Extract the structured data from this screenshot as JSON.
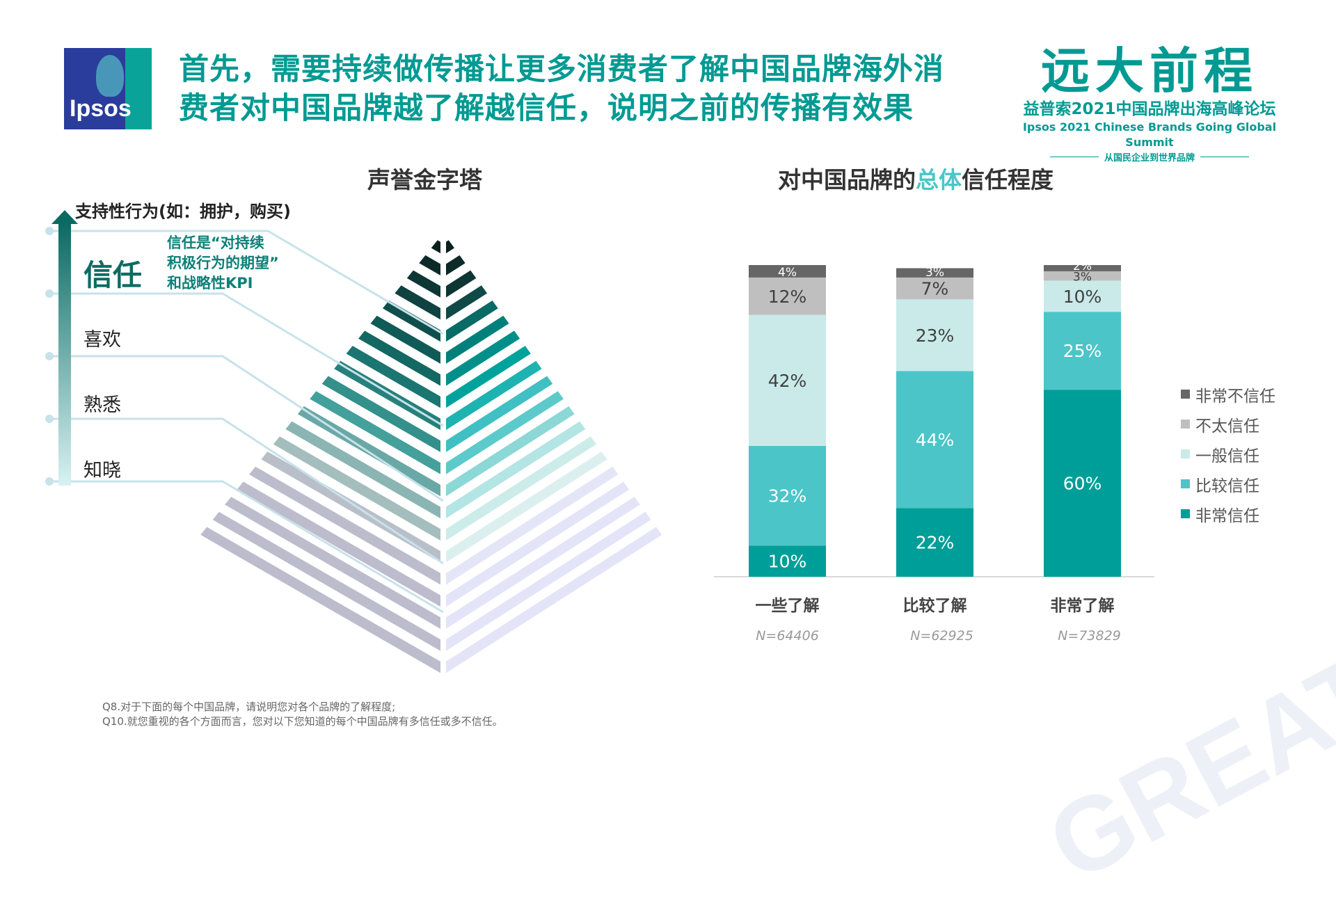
{
  "header": {
    "logo_text": "Ipsos",
    "title_line1": "首先，需要持续做传播让更多消费者了解中国品牌海外消",
    "title_line2": "费者对中国品牌越了解越信任，说明之前的传播有效果"
  },
  "brand": {
    "title": "远大前程",
    "subtitle": "益普索2021中国品牌出海高峰论坛",
    "english": "Ipsos 2021 Chinese Brands Going Global Summit",
    "slogan": "从国民企业到世界品牌",
    "watermark": "GREAT EXPECTATIONS"
  },
  "pyramid": {
    "title": "声誉金字塔",
    "top_label": "支持性行为(如：拥护，购买)",
    "levels": [
      "信任",
      "喜欢",
      "熟悉",
      "知晓"
    ],
    "note_line1": "信任是“对持续",
    "note_line2": "积极行为的期望”",
    "note_line3": "和战略性KPI"
  },
  "chart_data": {
    "type": "bar",
    "stacked": true,
    "title_prefix": "对中国品牌的",
    "title_highlight": "总体",
    "title_suffix": "信任程度",
    "categories": [
      "一些了解",
      "比较了解",
      "非常了解"
    ],
    "sample_sizes": [
      "N=64406",
      "N=62925",
      "N=73829"
    ],
    "series": [
      {
        "name": "非常信任",
        "color": "#009e98",
        "values": [
          10,
          22,
          60
        ]
      },
      {
        "name": "比较信任",
        "color": "#4bc5c8",
        "values": [
          32,
          44,
          25
        ]
      },
      {
        "name": "一般信任",
        "color": "#c9eae9",
        "values": [
          42,
          23,
          10
        ]
      },
      {
        "name": "不太信任",
        "color": "#bfbfbf",
        "values": [
          12,
          7,
          3
        ]
      },
      {
        "name": "非常不信任",
        "color": "#666666",
        "values": [
          4,
          3,
          2
        ]
      }
    ],
    "legend": [
      "非常不信任",
      "不太信任",
      "一般信任",
      "比较信任",
      "非常信任"
    ],
    "ylim": [
      0,
      100
    ],
    "legend_position": "right"
  },
  "footnote": {
    "q8": "Q8.对于下面的每个中国品牌，请说明您对各个品牌的了解程度;",
    "q10": "Q10.就您重视的各个方面而言，您对以下您知道的每个中国品牌有多信任或多不信任。"
  }
}
